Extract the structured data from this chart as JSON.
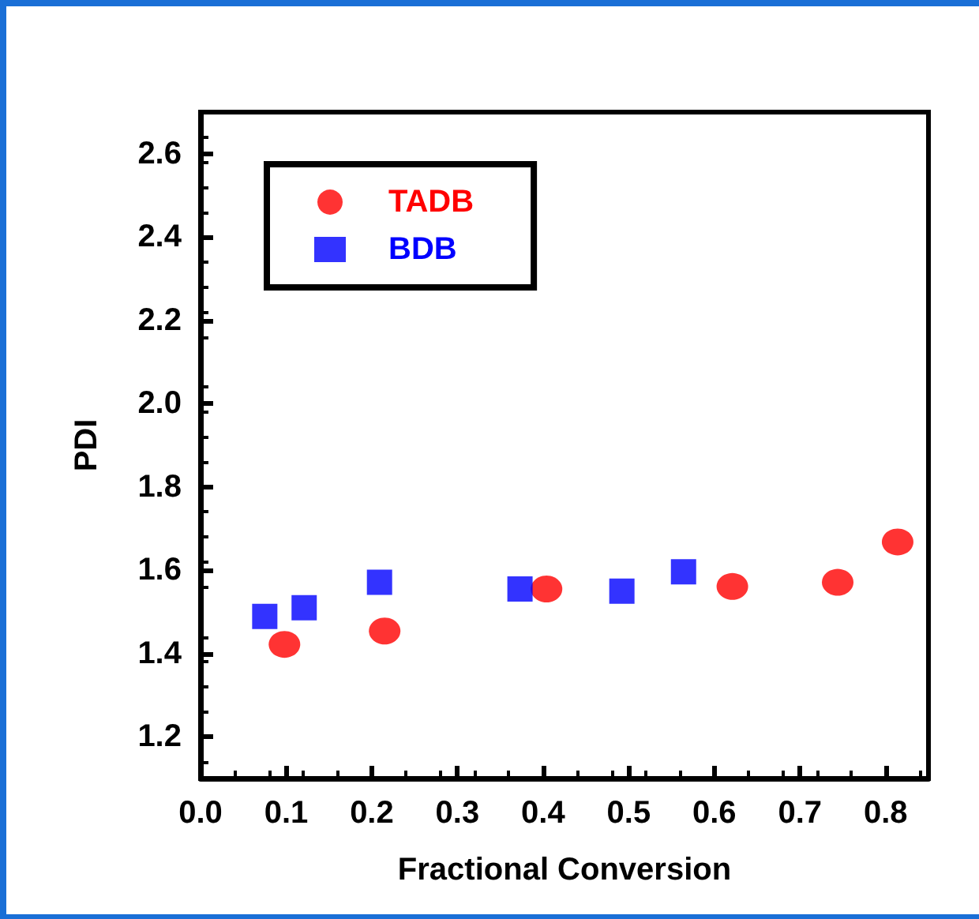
{
  "chart_data": {
    "type": "scatter",
    "xlabel": "Fractional Conversion",
    "ylabel": "PDI",
    "xlim": [
      0,
      0.85
    ],
    "xticks": [
      {
        "value": 0,
        "label": "0.0"
      },
      0.1,
      0.2,
      0.3,
      0.4,
      0.5,
      0.6,
      0.7,
      0.8
    ],
    "ylim": [
      1.1,
      2.7
    ],
    "yticks": [
      1.2,
      1.4,
      1.6,
      1.8,
      {
        "value": 2,
        "label": "2.0"
      },
      2.2,
      2.4,
      2.6
    ],
    "grid": false,
    "legend": "top left",
    "series": [
      {
        "name": "TADB",
        "color": "#ff0000",
        "marker": "circle",
        "x": [
          0.098,
          0.215,
          0.404,
          0.621,
          0.744,
          0.814
        ],
        "values": [
          1.422,
          1.454,
          1.555,
          1.561,
          1.571,
          1.668
        ]
      },
      {
        "name": "BDB",
        "color": "#0000ff",
        "marker": "square",
        "x": [
          0.075,
          0.121,
          0.209,
          0.373,
          0.492,
          0.564
        ],
        "values": [
          1.489,
          1.51,
          1.571,
          1.555,
          1.55,
          1.596
        ]
      }
    ]
  }
}
